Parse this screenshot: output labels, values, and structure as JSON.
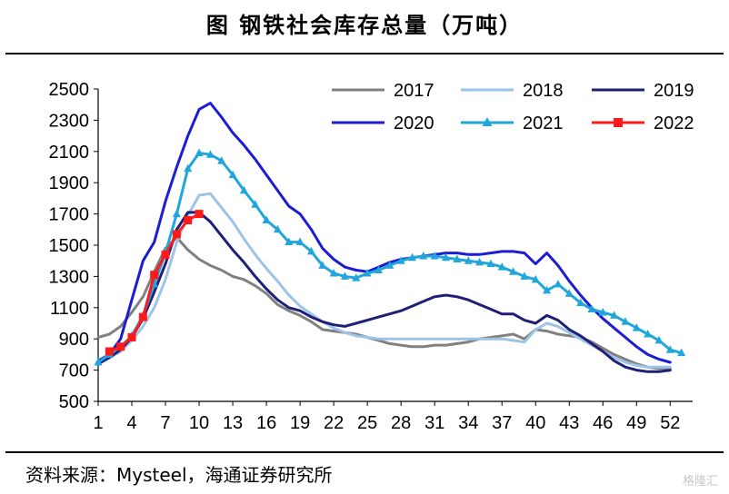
{
  "title": "图  钢铁社会库存总量（万吨）",
  "source": "资料来源：Mysteel，海通证券研究所",
  "watermark": "格隆汇",
  "chart_data": {
    "type": "line",
    "title": "图  钢铁社会库存总量（万吨）",
    "xlabel": "",
    "ylabel": "",
    "xlim": [
      1,
      54
    ],
    "ylim": [
      500,
      2500
    ],
    "x_ticks": [
      1,
      4,
      7,
      10,
      13,
      16,
      19,
      22,
      25,
      28,
      31,
      34,
      37,
      40,
      43,
      46,
      49,
      52
    ],
    "y_ticks": [
      500,
      700,
      900,
      1100,
      1300,
      1500,
      1700,
      1900,
      2100,
      2300,
      2500
    ],
    "legend_position": "top-right",
    "grid": false,
    "series": [
      {
        "name": "2017",
        "color": "#808080",
        "marker": "none",
        "x": [
          1,
          2,
          3,
          4,
          5,
          6,
          7,
          8,
          9,
          10,
          11,
          12,
          13,
          14,
          15,
          16,
          17,
          18,
          19,
          20,
          21,
          22,
          23,
          24,
          25,
          26,
          27,
          28,
          29,
          30,
          31,
          32,
          33,
          34,
          35,
          36,
          37,
          38,
          39,
          40,
          41,
          42,
          43,
          44,
          45,
          46,
          47,
          48,
          49,
          50,
          51,
          52
        ],
        "values": [
          910,
          930,
          980,
          1070,
          1170,
          1330,
          1480,
          1550,
          1470,
          1410,
          1370,
          1340,
          1300,
          1280,
          1240,
          1190,
          1120,
          1080,
          1050,
          1010,
          960,
          950,
          940,
          930,
          910,
          890,
          870,
          860,
          850,
          850,
          860,
          860,
          870,
          880,
          900,
          910,
          920,
          930,
          900,
          960,
          950,
          930,
          920,
          910,
          880,
          840,
          800,
          770,
          740,
          720,
          710,
          710
        ]
      },
      {
        "name": "2018",
        "color": "#9dc3e6",
        "marker": "none",
        "x": [
          1,
          2,
          3,
          4,
          5,
          6,
          7,
          8,
          9,
          10,
          11,
          12,
          13,
          14,
          15,
          16,
          17,
          18,
          19,
          20,
          21,
          22,
          23,
          24,
          25,
          26,
          27,
          28,
          29,
          30,
          31,
          32,
          33,
          34,
          35,
          36,
          37,
          38,
          39,
          40,
          41,
          42,
          43,
          44,
          45,
          46,
          47,
          48,
          49,
          50,
          51,
          52
        ],
        "values": [
          740,
          780,
          820,
          890,
          980,
          1100,
          1280,
          1520,
          1690,
          1820,
          1830,
          1740,
          1650,
          1540,
          1440,
          1350,
          1270,
          1180,
          1110,
          1060,
          1010,
          970,
          940,
          920,
          910,
          900,
          900,
          900,
          900,
          900,
          900,
          900,
          900,
          900,
          900,
          900,
          900,
          890,
          880,
          960,
          1000,
          980,
          940,
          900,
          860,
          820,
          780,
          750,
          730,
          720,
          720,
          720
        ]
      },
      {
        "name": "2019",
        "color": "#1f1f7a",
        "marker": "none",
        "x": [
          1,
          2,
          3,
          4,
          5,
          6,
          7,
          8,
          9,
          10,
          11,
          12,
          13,
          14,
          15,
          16,
          17,
          18,
          19,
          20,
          21,
          22,
          23,
          24,
          25,
          26,
          27,
          28,
          29,
          30,
          31,
          32,
          33,
          34,
          35,
          36,
          37,
          38,
          39,
          40,
          41,
          42,
          43,
          44,
          45,
          46,
          47,
          48,
          49,
          50,
          51,
          52
        ],
        "values": [
          740,
          780,
          830,
          910,
          1030,
          1200,
          1380,
          1600,
          1710,
          1710,
          1650,
          1560,
          1470,
          1390,
          1300,
          1220,
          1150,
          1100,
          1080,
          1040,
          1010,
          990,
          980,
          1000,
          1020,
          1040,
          1060,
          1080,
          1110,
          1140,
          1170,
          1180,
          1170,
          1150,
          1120,
          1090,
          1060,
          1060,
          1020,
          1000,
          1050,
          1020,
          960,
          920,
          870,
          820,
          760,
          720,
          700,
          690,
          690,
          700
        ]
      },
      {
        "name": "2020",
        "color": "#1c1cd6",
        "marker": "none",
        "x": [
          1,
          2,
          3,
          4,
          5,
          6,
          7,
          8,
          9,
          10,
          11,
          12,
          13,
          14,
          15,
          16,
          17,
          18,
          19,
          20,
          21,
          22,
          23,
          24,
          25,
          26,
          27,
          28,
          29,
          30,
          31,
          32,
          33,
          34,
          35,
          36,
          37,
          38,
          39,
          40,
          41,
          42,
          43,
          44,
          45,
          46,
          47,
          48,
          49,
          50,
          51,
          52
        ],
        "values": [
          760,
          800,
          900,
          1150,
          1400,
          1520,
          1780,
          2000,
          2200,
          2370,
          2410,
          2320,
          2220,
          2140,
          2050,
          1950,
          1850,
          1750,
          1700,
          1600,
          1480,
          1410,
          1360,
          1340,
          1330,
          1360,
          1390,
          1410,
          1420,
          1430,
          1440,
          1450,
          1450,
          1440,
          1440,
          1450,
          1460,
          1460,
          1450,
          1380,
          1450,
          1370,
          1270,
          1180,
          1100,
          1030,
          970,
          910,
          850,
          800,
          770,
          750
        ]
      },
      {
        "name": "2021",
        "color": "#21a6dc",
        "marker": "triangle",
        "x": [
          1,
          2,
          3,
          4,
          5,
          6,
          7,
          8,
          9,
          10,
          11,
          12,
          13,
          14,
          15,
          16,
          17,
          18,
          19,
          20,
          21,
          22,
          23,
          24,
          25,
          26,
          27,
          28,
          29,
          30,
          31,
          32,
          33,
          34,
          35,
          36,
          37,
          38,
          39,
          40,
          41,
          42,
          43,
          44,
          45,
          46,
          47,
          48,
          49,
          50,
          51,
          52,
          53
        ],
        "values": [
          750,
          800,
          850,
          920,
          1050,
          1250,
          1450,
          1700,
          1990,
          2090,
          2080,
          2040,
          1950,
          1850,
          1760,
          1660,
          1600,
          1520,
          1520,
          1460,
          1370,
          1320,
          1300,
          1290,
          1320,
          1340,
          1370,
          1400,
          1420,
          1430,
          1430,
          1420,
          1410,
          1400,
          1390,
          1380,
          1360,
          1330,
          1300,
          1280,
          1210,
          1250,
          1190,
          1130,
          1090,
          1070,
          1050,
          1010,
          970,
          930,
          890,
          830,
          810
        ]
      },
      {
        "name": "2022",
        "color": "#ff1a1a",
        "marker": "square",
        "x": [
          2,
          3,
          4,
          5,
          6,
          7,
          8,
          9,
          10
        ],
        "values": [
          820,
          850,
          910,
          1040,
          1310,
          1440,
          1570,
          1660,
          1700
        ]
      }
    ]
  }
}
